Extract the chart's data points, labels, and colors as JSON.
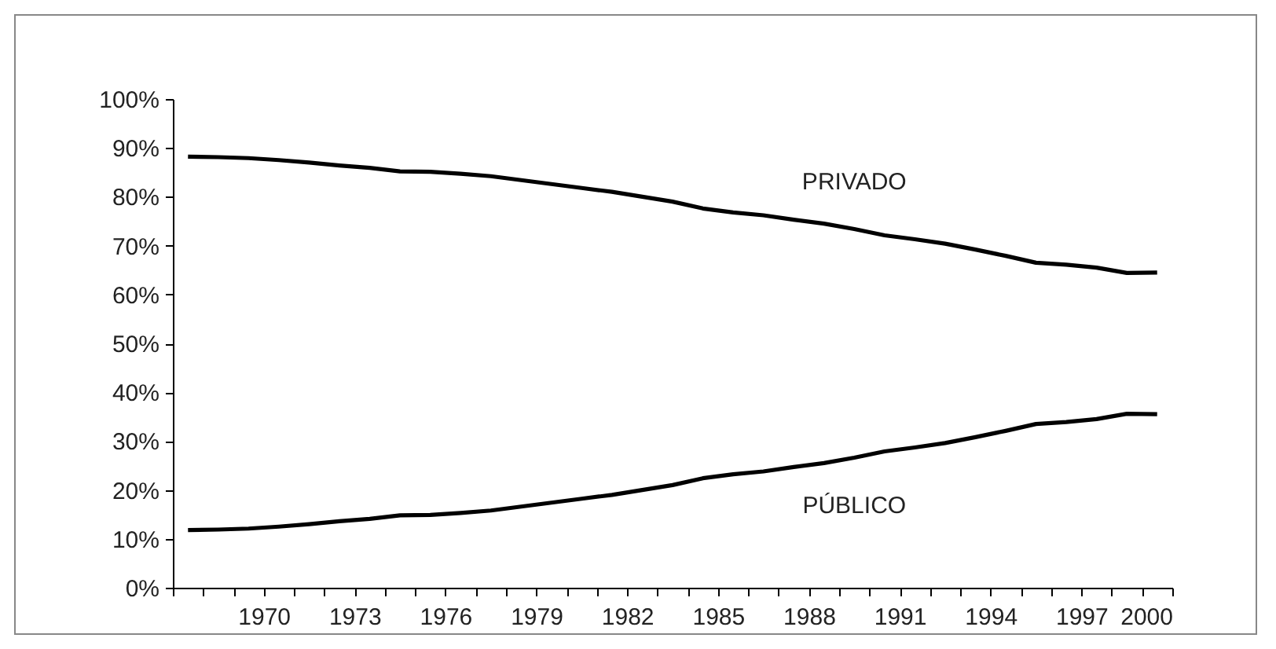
{
  "chart_data": {
    "type": "line",
    "x": [
      1967.5,
      1968.5,
      1969.5,
      1970.5,
      1971.5,
      1972.5,
      1973.5,
      1974.5,
      1975.5,
      1976.5,
      1977.5,
      1978.5,
      1979.5,
      1980.5,
      1981.5,
      1982.5,
      1983.5,
      1984.5,
      1985.5,
      1986.5,
      1987.5,
      1988.5,
      1989.5,
      1990.5,
      1991.5,
      1992.5,
      1993.5,
      1994.5,
      1995.5,
      1996.5,
      1997.5,
      1998.5,
      1999.5
    ],
    "series": [
      {
        "name": "PRIVADO",
        "color": "#000000",
        "values": [
          88.2,
          88.1,
          87.9,
          87.5,
          87.0,
          86.4,
          85.9,
          85.2,
          85.1,
          84.7,
          84.2,
          83.4,
          82.6,
          81.8,
          81.0,
          80.0,
          79.0,
          77.6,
          76.8,
          76.2,
          75.3,
          74.5,
          73.4,
          72.1,
          71.3,
          70.4,
          69.2,
          67.9,
          66.5,
          66.1,
          65.5,
          64.4,
          64.5
        ]
      },
      {
        "name": "PÚBLICO",
        "color": "#000000",
        "values": [
          11.8,
          11.9,
          12.1,
          12.5,
          13.0,
          13.6,
          14.1,
          14.8,
          14.9,
          15.3,
          15.8,
          16.6,
          17.4,
          18.2,
          19.0,
          20.0,
          21.0,
          22.4,
          23.2,
          23.8,
          24.7,
          25.5,
          26.6,
          27.9,
          28.7,
          29.6,
          30.8,
          32.1,
          33.5,
          33.9,
          34.5,
          35.6,
          35.5
        ]
      }
    ],
    "xlim": [
      1967,
      2000
    ],
    "xticks": [
      {
        "value": 1967,
        "label": null
      },
      {
        "value": 1968,
        "label": null
      },
      {
        "value": 1969,
        "label": null
      },
      1970,
      {
        "value": 1971,
        "label": null
      },
      {
        "value": 1972,
        "label": null
      },
      1973,
      {
        "value": 1974,
        "label": null
      },
      {
        "value": 1975,
        "label": null
      },
      1976,
      {
        "value": 1977,
        "label": null
      },
      {
        "value": 1978,
        "label": null
      },
      1979,
      {
        "value": 1980,
        "label": null
      },
      {
        "value": 1981,
        "label": null
      },
      1982,
      {
        "value": 1983,
        "label": null
      },
      {
        "value": 1984,
        "label": null
      },
      1985,
      {
        "value": 1986,
        "label": null
      },
      {
        "value": 1987,
        "label": null
      },
      1988,
      {
        "value": 1989,
        "label": null
      },
      {
        "value": 1990,
        "label": null
      },
      1991,
      {
        "value": 1992,
        "label": null
      },
      {
        "value": 1993,
        "label": null
      },
      1994,
      {
        "value": 1995,
        "label": null
      },
      {
        "value": 1996,
        "label": null
      },
      1997,
      {
        "value": 1998,
        "label": null
      },
      {
        "value": 1999,
        "label": null
      },
      2000
    ],
    "ylim": [
      0,
      100
    ],
    "yticks": [
      {
        "value": 0,
        "label": "0%"
      },
      {
        "value": 10,
        "label": "10%"
      },
      {
        "value": 20,
        "label": "20%"
      },
      {
        "value": 30,
        "label": "30%"
      },
      {
        "value": 40,
        "label": "40%"
      },
      {
        "value": 50,
        "label": "50%"
      },
      {
        "value": 60,
        "label": "60%"
      },
      {
        "value": 70,
        "label": "70%"
      },
      {
        "value": 80,
        "label": "80%"
      },
      {
        "value": 90,
        "label": "90%"
      },
      {
        "value": 100,
        "label": "100%"
      }
    ],
    "grid": false,
    "legend": false,
    "marker": "none",
    "line_style": "solid"
  }
}
